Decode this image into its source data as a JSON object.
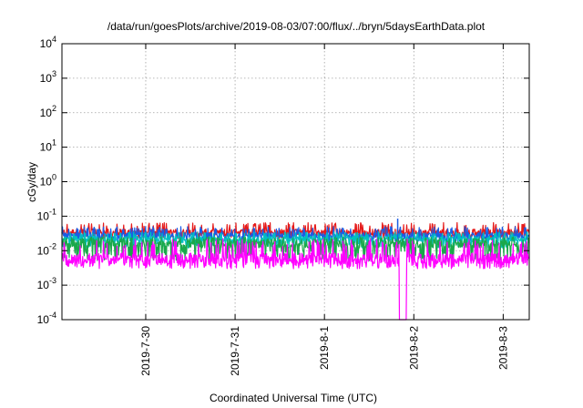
{
  "chart_data": {
    "type": "line",
    "title": "/data/run/goesPlots/archive/2019-08-03/07:00/flux/../bryn/5daysEarthData.plot",
    "xlabel": "Coordinated Universal Time (UTC)",
    "ylabel": "cGy/day",
    "y_scale": "log",
    "ylim": [
      0.0001,
      10000
    ],
    "xlim": [
      "2019-07-29T01:30",
      "2019-08-03T07:00"
    ],
    "grid": true,
    "y_ticks": [
      {
        "value": 0.0001,
        "base": "10",
        "exp": "-4"
      },
      {
        "value": 0.001,
        "base": "10",
        "exp": "-3"
      },
      {
        "value": 0.01,
        "base": "10",
        "exp": "-2"
      },
      {
        "value": 0.1,
        "base": "10",
        "exp": "-1"
      },
      {
        "value": 1,
        "base": "10",
        "exp": "0"
      },
      {
        "value": 10,
        "base": "10",
        "exp": "1"
      },
      {
        "value": 100,
        "base": "10",
        "exp": "2"
      },
      {
        "value": 1000,
        "base": "10",
        "exp": "3"
      },
      {
        "value": 10000,
        "base": "10",
        "exp": "4"
      }
    ],
    "x_ticks": [
      {
        "value": "2019-07-30T00:00",
        "label": "2019-7-30"
      },
      {
        "value": "2019-07-31T00:00",
        "label": "2019-7-31"
      },
      {
        "value": "2019-08-01T00:00",
        "label": "2019-8-1"
      },
      {
        "value": "2019-08-02T00:00",
        "label": "2019-8-2"
      },
      {
        "value": "2019-08-03T00:00",
        "label": "2019-8-3"
      }
    ],
    "series": [
      {
        "color": "#e51a1a",
        "baseline": 0.035,
        "high": 0.065,
        "low": 0.022
      },
      {
        "color": "#1a5ce5",
        "baseline": 0.028,
        "high": 0.05,
        "low": 0.018
      },
      {
        "color": "#00c0c0",
        "baseline": 0.022,
        "high": 0.035,
        "low": 0.012
      },
      {
        "color": "#1aa84a",
        "baseline": 0.016,
        "high": 0.025,
        "low": 0.005
      },
      {
        "color": "#ff00ff",
        "baseline": 0.006,
        "high": 0.022,
        "low": 0.003
      }
    ],
    "dropout": {
      "start": "2019-08-01T20:00",
      "end": "2019-08-01T22:00",
      "value": 0.0001
    },
    "spike": {
      "x": "2019-08-01T19:40",
      "value": 0.085
    }
  }
}
